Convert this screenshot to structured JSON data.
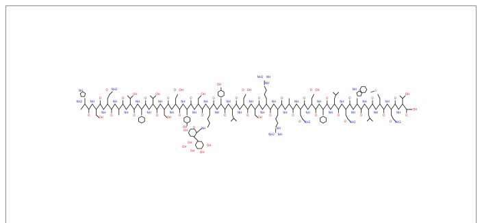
{
  "diagram": {
    "type": "peptide-structure",
    "residues": [
      "H",
      "S",
      "Q",
      "G",
      "T",
      "F",
      "T",
      "S",
      "D",
      "Y",
      "S",
      "K",
      "Y",
      "L",
      "D",
      "S",
      "R",
      "R",
      "A",
      "Q",
      "D",
      "F",
      "V",
      "Q",
      "W",
      "L",
      "M",
      "N",
      "T"
    ],
    "glyco_substituent": "sugar",
    "colors": {
      "bond": "#2a2a2a",
      "oxygen": "#e02020",
      "nitrogen": "#2030d0",
      "border": "#8a8a8a"
    },
    "labels": {
      "oxygen": "O",
      "hydroxyl": "OH",
      "amine": "NH",
      "amine2": "NH2",
      "nitrogen": "N",
      "sulfur": "S"
    }
  }
}
